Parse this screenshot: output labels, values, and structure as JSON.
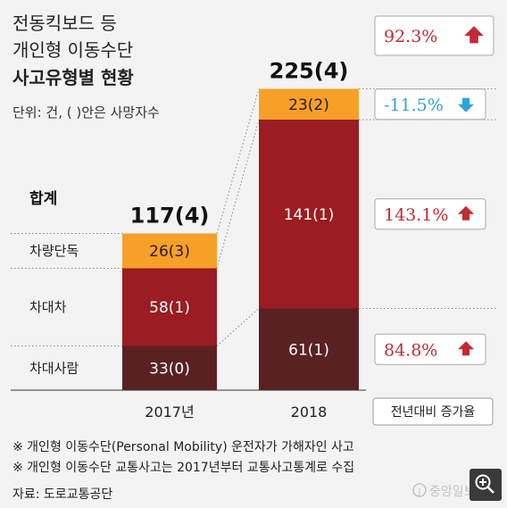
{
  "title_line1": "전동킥보드 등",
  "title_line2": "개인형 이동수단",
  "title_line3": "사고유형별 현황",
  "unit_note": "단위: 건, ( )안은 사망자수",
  "total_row_label": "합계",
  "change_legend": "전년대비 증가율",
  "footnote1": "※ 개인형 이동수단(Personal Mobility) 운전자가 가해자인 사고",
  "footnote2": "※ 개인형 이동수단 교통사고는 2017년부터 교통사고통계로 수집",
  "source": "자료: 도로교통공단",
  "watermark": "중앙일보",
  "colors": {
    "차량단독": "#f6a02a",
    "차대차": "#9b1c22",
    "차대사람": "#5a2122",
    "increase": "#c42a33",
    "decrease": "#2ea4d9"
  },
  "chart_data": {
    "type": "bar",
    "stacked": true,
    "categories": [
      "2017년",
      "2018"
    ],
    "totals": [
      "117(4)",
      "225(4)"
    ],
    "total_values": [
      117,
      225
    ],
    "series": [
      {
        "name": "차대사람",
        "values": [
          33,
          61
        ],
        "labels": [
          "33(0)",
          "61(1)"
        ],
        "text_color": "#ffffff"
      },
      {
        "name": "차대차",
        "values": [
          58,
          141
        ],
        "labels": [
          "58(1)",
          "141(1)"
        ],
        "text_color": "#ffffff"
      },
      {
        "name": "차량단독",
        "values": [
          26,
          23
        ],
        "labels": [
          "26(3)",
          "23(2)"
        ],
        "text_color": "#2a1a0a"
      }
    ],
    "yoy_change": {
      "합계": "92.3%",
      "차량단독": "-11.5%",
      "차대차": "143.1%",
      "차대사람": "84.8%"
    },
    "yoy_direction": {
      "합계": "up",
      "차량단독": "down",
      "차대차": "up",
      "차대사람": "up"
    }
  }
}
